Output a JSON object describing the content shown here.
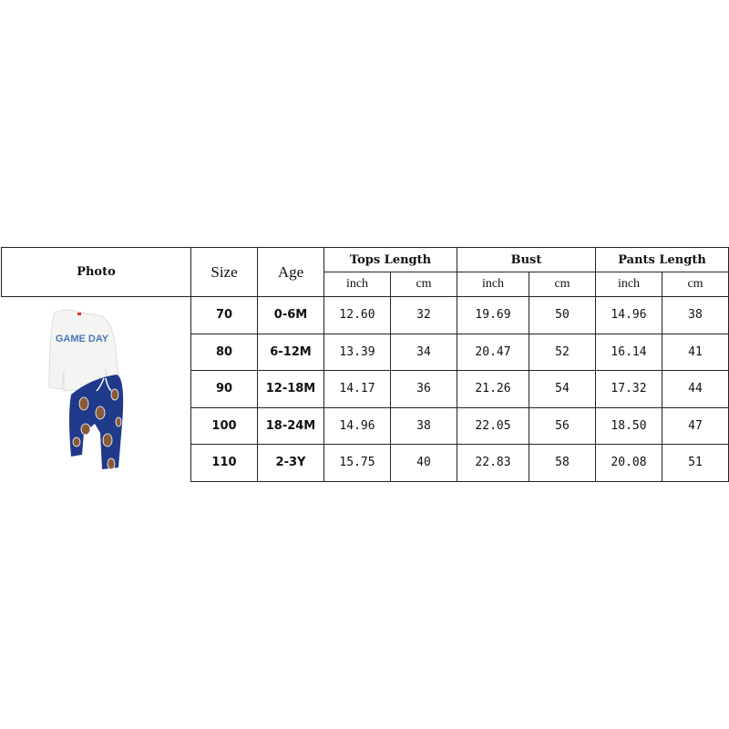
{
  "headers": {
    "photo": "Photo",
    "size": "Size",
    "age": "Age",
    "tops_length": "Tops Length",
    "bust": "Bust",
    "pants_length": "Pants Length",
    "inch": "inch",
    "cm": "cm"
  },
  "photo": {
    "sweatshirt_text": "GAME DAY",
    "sweatshirt_color": "#f4f4f2",
    "text_color": "#4a78b8",
    "pants_color": "#1f3a8a"
  },
  "rows": [
    {
      "size": "70",
      "age": "0-6M",
      "tops_inch": "12.60",
      "tops_cm": "32",
      "bust_inch": "19.69",
      "bust_cm": "50",
      "pants_inch": "14.96",
      "pants_cm": "38"
    },
    {
      "size": "80",
      "age": "6-12M",
      "tops_inch": "13.39",
      "tops_cm": "34",
      "bust_inch": "20.47",
      "bust_cm": "52",
      "pants_inch": "16.14",
      "pants_cm": "41"
    },
    {
      "size": "90",
      "age": "12-18M",
      "tops_inch": "14.17",
      "tops_cm": "36",
      "bust_inch": "21.26",
      "bust_cm": "54",
      "pants_inch": "17.32",
      "pants_cm": "44"
    },
    {
      "size": "100",
      "age": "18-24M",
      "tops_inch": "14.96",
      "tops_cm": "38",
      "bust_inch": "22.05",
      "bust_cm": "56",
      "pants_inch": "18.50",
      "pants_cm": "47"
    },
    {
      "size": "110",
      "age": "2-3Y",
      "tops_inch": "15.75",
      "tops_cm": "40",
      "bust_inch": "22.83",
      "bust_cm": "58",
      "pants_inch": "20.08",
      "pants_cm": "51"
    }
  ]
}
